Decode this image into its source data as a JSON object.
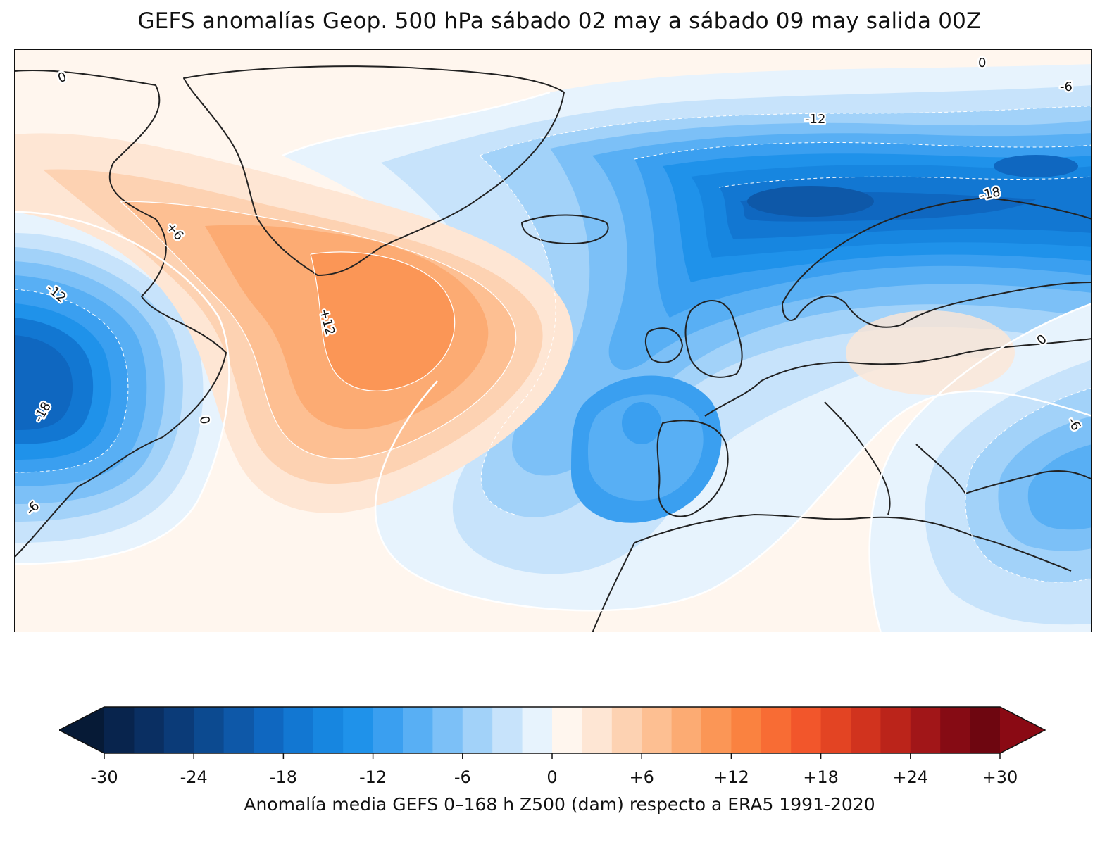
{
  "title": "GEFS anomalías Geop. 500 hPa sábado 02 may a sábado 09 may salida 00Z",
  "colorbar": {
    "label": "Anomalía media GEFS 0–168 h Z500 (dam) respecto a ERA5 1991-2020",
    "ticks": [
      "-30",
      "-24",
      "-18",
      "-12",
      "-6",
      "0",
      "+6",
      "+12",
      "+18",
      "+24",
      "+30"
    ],
    "tick_values": [
      -30,
      -24,
      -18,
      -12,
      -6,
      0,
      6,
      12,
      18,
      24,
      30
    ],
    "range": [
      -30,
      30
    ],
    "step": 2,
    "extend": "both",
    "colors": [
      "#08244d",
      "#0a2f62",
      "#0b3b78",
      "#0c4a90",
      "#0e58a8",
      "#0f67c0",
      "#1277d2",
      "#1786e0",
      "#1f92ea",
      "#3a9ff0",
      "#58aff4",
      "#7cc0f7",
      "#a2d2f9",
      "#c7e3fb",
      "#e7f3fd",
      "#fff6ee",
      "#fee6d4",
      "#fdd2b2",
      "#fdbf92",
      "#fcab73",
      "#fb9656",
      "#fa8240",
      "#f86c34",
      "#f2562b",
      "#e34423",
      "#d1331e",
      "#bb241a",
      "#a11618",
      "#860b14",
      "#6e0610"
    ],
    "under_color": "#061a36",
    "over_color": "#8a0a14"
  },
  "contour_labels": [
    "0",
    "0",
    "0",
    "0",
    "-6",
    "-6",
    "-6",
    "-12",
    "-12",
    "-18",
    "-18",
    "+6",
    "+12"
  ],
  "map_data": {
    "field": "Z500 anomaly (dam)",
    "features": [
      {
        "name": "positive anomaly centre south of Greenland",
        "value": 12
      },
      {
        "name": "negative anomaly centre Scandinavia / Norwegian Sea",
        "value": -18
      },
      {
        "name": "negative anomaly centre eastern North America",
        "value": -18
      },
      {
        "name": "negative anomaly west of Iberia",
        "value": -12
      },
      {
        "name": "negative anomaly eastern Mediterranean",
        "value": -6
      }
    ]
  }
}
